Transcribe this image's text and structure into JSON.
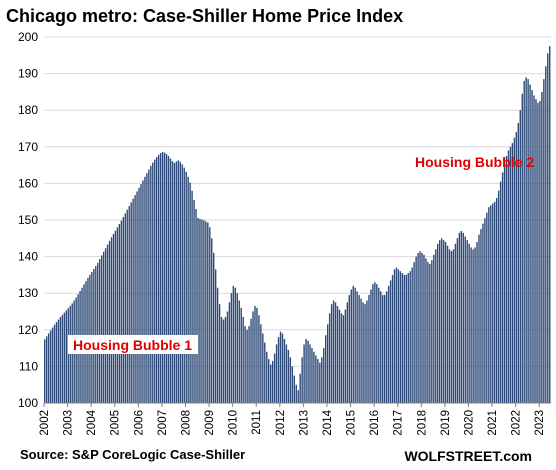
{
  "chart_data": {
    "type": "bar",
    "title": "Chicago metro: Case-Shiller Home Price Index",
    "source": "Source: S&P CoreLogic Case-Shiller",
    "watermark": "WOLFSTREET.com",
    "xlabel": "",
    "ylabel": "",
    "ylim": [
      100,
      200
    ],
    "y_ticks": [
      100,
      110,
      120,
      130,
      140,
      150,
      160,
      170,
      180,
      190,
      200
    ],
    "x_ticks": [
      "2002",
      "2003",
      "2004",
      "2005",
      "2006",
      "2007",
      "2008",
      "2009",
      "2010",
      "2011",
      "2012",
      "2013",
      "2014",
      "2015",
      "2016",
      "2017",
      "2018",
      "2019",
      "2020",
      "2021",
      "2022",
      "2023"
    ],
    "grid": "horizontal",
    "bar_color": "#2e4a78",
    "annotations": [
      {
        "text": "Housing Bubble 1",
        "color": "#e00000",
        "box": true
      },
      {
        "text": "Housing Bubble 2",
        "color": "#e00000",
        "box": false
      }
    ],
    "series": [
      {
        "start": "2002-01",
        "frequency": "monthly",
        "values": [
          117.4,
          118.2,
          119.0,
          119.8,
          120.6,
          121.4,
          122.1,
          122.8,
          123.5,
          124.1,
          124.7,
          125.3,
          125.9,
          126.5,
          127.2,
          128.0,
          128.8,
          129.7,
          130.6,
          131.5,
          132.4,
          133.3,
          134.2,
          135.0,
          135.8,
          136.6,
          137.4,
          138.3,
          139.3,
          140.3,
          141.3,
          142.3,
          143.3,
          144.3,
          145.3,
          146.2,
          147.1,
          148.0,
          148.9,
          149.8,
          150.8,
          151.8,
          152.8,
          153.8,
          154.8,
          155.8,
          156.8,
          157.8,
          158.8,
          159.8,
          160.8,
          161.8,
          162.8,
          163.8,
          164.8,
          165.7,
          166.5,
          167.2,
          167.8,
          168.3,
          168.6,
          168.4,
          168.0,
          167.5,
          166.8,
          166.1,
          165.6,
          166.0,
          166.3,
          165.9,
          165.2,
          164.3,
          163.2,
          161.8,
          160.2,
          158.0,
          155.5,
          153.0,
          150.6,
          150.3,
          150.1,
          149.9,
          149.6,
          149.3,
          148.0,
          145.0,
          141.0,
          136.5,
          131.5,
          127.0,
          123.5,
          122.8,
          123.5,
          125.0,
          127.5,
          130.0,
          132.0,
          131.5,
          130.0,
          128.0,
          126.0,
          123.5,
          121.0,
          120.0,
          121.0,
          123.0,
          125.0,
          126.5,
          126.0,
          124.0,
          121.5,
          119.0,
          116.5,
          114.0,
          112.0,
          110.5,
          111.5,
          113.5,
          116.0,
          118.0,
          119.5,
          119.0,
          117.5,
          116.0,
          114.5,
          112.5,
          110.0,
          107.5,
          105.0,
          103.5,
          108.0,
          112.5,
          116.0,
          117.5,
          117.0,
          116.0,
          115.0,
          114.0,
          113.0,
          112.0,
          111.0,
          112.5,
          115.0,
          118.5,
          121.5,
          124.5,
          127.0,
          128.0,
          127.5,
          126.5,
          125.5,
          124.5,
          124.0,
          125.5,
          127.5,
          129.5,
          131.0,
          132.0,
          131.5,
          130.5,
          129.5,
          128.5,
          127.5,
          127.0,
          128.0,
          129.5,
          131.0,
          132.5,
          133.0,
          132.5,
          131.5,
          130.5,
          129.5,
          129.5,
          130.5,
          132.0,
          133.5,
          135.0,
          136.5,
          137.0,
          136.5,
          136.0,
          135.5,
          135.0,
          135.0,
          135.5,
          136.0,
          137.0,
          138.5,
          140.0,
          141.0,
          141.5,
          141.0,
          140.5,
          139.5,
          138.5,
          138.0,
          139.0,
          140.5,
          142.0,
          143.5,
          144.5,
          145.0,
          144.5,
          144.0,
          143.0,
          142.0,
          141.5,
          142.0,
          143.5,
          145.0,
          146.5,
          147.0,
          146.5,
          145.5,
          144.5,
          143.5,
          142.5,
          142.0,
          142.5,
          144.0,
          146.0,
          147.5,
          149.0,
          150.5,
          152.0,
          153.5,
          154.0,
          154.5,
          155.0,
          156.0,
          158.0,
          160.5,
          163.0,
          165.5,
          167.5,
          169.0,
          170.0,
          171.0,
          172.5,
          174.0,
          176.5,
          180.0,
          184.5,
          188.0,
          189.0,
          188.5,
          187.0,
          185.5,
          184.0,
          183.0,
          182.0,
          182.5,
          185.0,
          188.5,
          192.0,
          195.5,
          197.5
        ]
      }
    ]
  }
}
